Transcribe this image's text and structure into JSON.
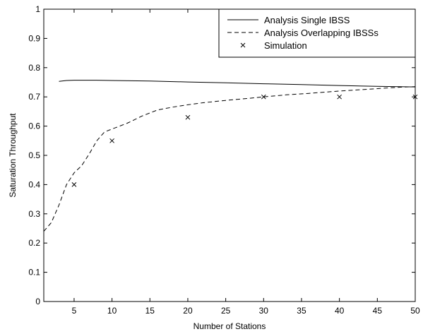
{
  "chart_data": {
    "type": "line",
    "title": "",
    "xlabel": "Number of Stations",
    "ylabel": "Saturation Throughput",
    "xlim": [
      1,
      50
    ],
    "ylim": [
      0,
      1
    ],
    "xticks": [
      5,
      10,
      15,
      20,
      25,
      30,
      35,
      40,
      45,
      50
    ],
    "yticks": [
      0,
      0.1,
      0.2,
      0.3,
      0.4,
      0.5,
      0.6,
      0.7,
      0.8,
      0.9,
      1
    ],
    "xtick_labels": [
      "5",
      "10",
      "15",
      "20",
      "25",
      "30",
      "35",
      "40",
      "45",
      "50"
    ],
    "ytick_labels": [
      "0",
      "0.1",
      "0.2",
      "0.3",
      "0.4",
      "0.5",
      "0.6",
      "0.7",
      "0.8",
      "0.9",
      "1"
    ],
    "grid": false,
    "legend_position": "top-right",
    "series": [
      {
        "name": "Analysis Single IBSS",
        "style": "solid",
        "marker": "none",
        "x": [
          3,
          4,
          5,
          6,
          8,
          10,
          15,
          20,
          25,
          30,
          35,
          40,
          45,
          50
        ],
        "y": [
          0.753,
          0.756,
          0.757,
          0.757,
          0.757,
          0.756,
          0.754,
          0.751,
          0.748,
          0.745,
          0.742,
          0.739,
          0.736,
          0.734
        ]
      },
      {
        "name": "Analysis Overlapping IBSSs",
        "style": "dashed",
        "marker": "none",
        "x": [
          1,
          2,
          3,
          4,
          5,
          6,
          7,
          8,
          9,
          10,
          12,
          14,
          16,
          18,
          20,
          22,
          25,
          28,
          30,
          33,
          36,
          40,
          43,
          46,
          48,
          50
        ],
        "y": [
          0.24,
          0.27,
          0.33,
          0.4,
          0.44,
          0.465,
          0.505,
          0.55,
          0.58,
          0.59,
          0.61,
          0.635,
          0.655,
          0.665,
          0.673,
          0.68,
          0.688,
          0.695,
          0.7,
          0.707,
          0.712,
          0.72,
          0.725,
          0.73,
          0.733,
          0.735
        ]
      },
      {
        "name": "Simulation",
        "style": "none",
        "marker": "x",
        "x": [
          5,
          10,
          20,
          30,
          40,
          50
        ],
        "y": [
          0.4,
          0.55,
          0.63,
          0.7,
          0.7,
          0.7
        ]
      }
    ]
  }
}
